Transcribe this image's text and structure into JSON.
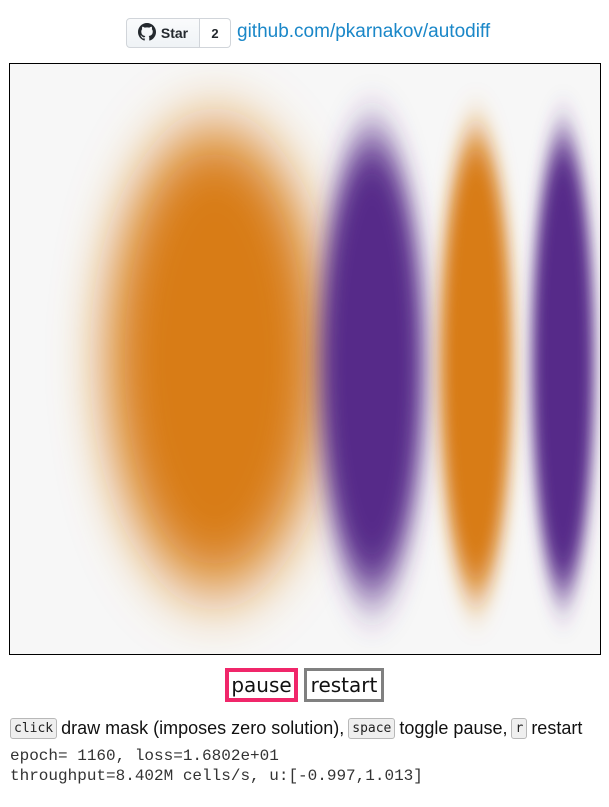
{
  "header": {
    "star_label": "Star",
    "star_count": "2",
    "repo_link": "github.com/pkarnakov/autodiff",
    "icon": "github-icon"
  },
  "canvas": {
    "background_color": "#f7f7f7",
    "positive_color": "#d87c14",
    "negative_color": "#572a89"
  },
  "controls": {
    "pause_label": "pause",
    "restart_label": "restart",
    "pause_border_color": "#f0266a",
    "restart_border_color": "#808080"
  },
  "help": {
    "key_click": "click",
    "desc_click": "draw mask (imposes zero solution),",
    "key_space": "space",
    "desc_space": "toggle pause,",
    "key_r": "r",
    "desc_r": "restart"
  },
  "status": {
    "line1": "epoch= 1160, loss=1.6802e+01",
    "line2": "throughput=8.402M cells/s, u:[-0.997,1.013]"
  }
}
